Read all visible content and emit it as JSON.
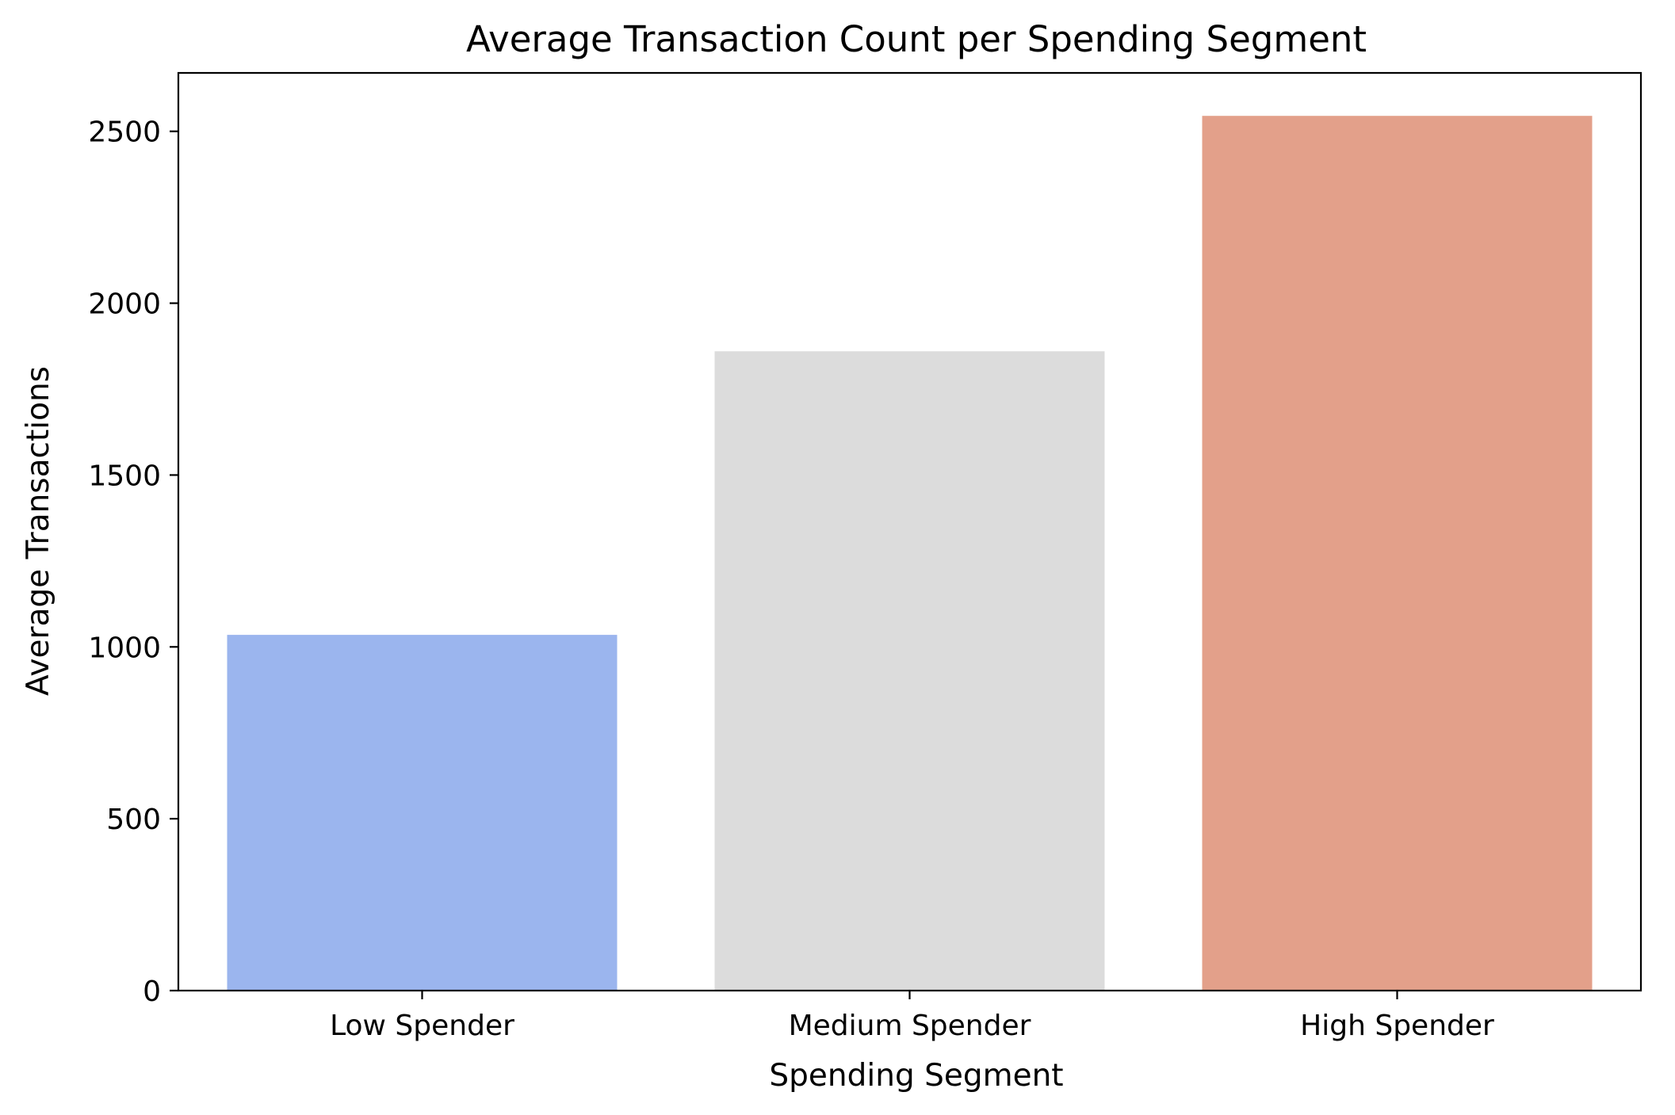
{
  "chart_data": {
    "type": "bar",
    "title": "Average Transaction Count per Spending Segment",
    "xlabel": "Spending Segment",
    "ylabel": "Average Transactions",
    "categories": [
      "Low Spender",
      "Medium Spender",
      "High Spender"
    ],
    "values": [
      1035,
      1860,
      2545
    ],
    "colors": [
      "#9bb5ee",
      "#dcdcdc",
      "#e3a08a"
    ],
    "ylim": [
      0,
      2670
    ],
    "yticks": [
      0,
      500,
      1000,
      1500,
      2000,
      2500
    ],
    "grid": false,
    "legend": "none"
  }
}
